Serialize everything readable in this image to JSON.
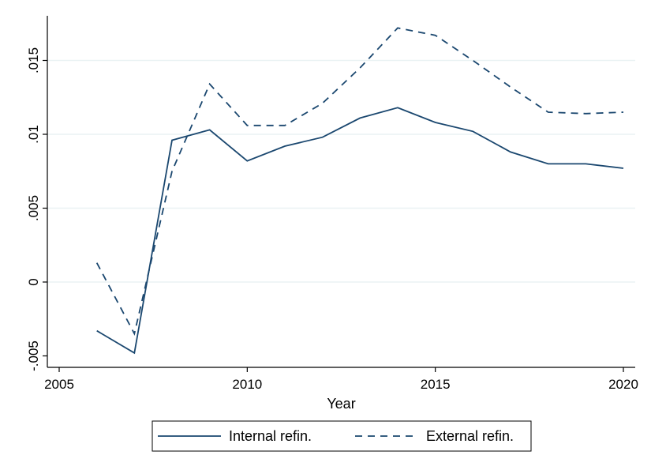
{
  "chart_data": {
    "type": "line",
    "title": "",
    "xlabel": "Year",
    "ylabel": "",
    "xlim": [
      2005,
      2020
    ],
    "ylim": [
      -0.005,
      0.0175
    ],
    "xticks": [
      2005,
      2010,
      2015,
      2020
    ],
    "xtick_labels": [
      "2005",
      "2010",
      "2015",
      "2020"
    ],
    "yticks": [
      -0.005,
      0,
      0.005,
      0.01,
      0.015
    ],
    "ytick_labels": [
      "-.005",
      "0",
      ".005",
      ".01",
      ".015"
    ],
    "grid": true,
    "legend_position": "bottom",
    "x": [
      2006,
      2007,
      2008,
      2009,
      2010,
      2011,
      2012,
      2013,
      2014,
      2015,
      2016,
      2017,
      2018,
      2019,
      2020
    ],
    "series": [
      {
        "name": "Internal refin.",
        "style": "solid",
        "color": "#1a476f",
        "values": [
          -0.0033,
          -0.0048,
          0.0096,
          0.0103,
          0.0082,
          0.0092,
          0.0098,
          0.0111,
          0.0118,
          0.0108,
          0.0102,
          0.0088,
          0.008,
          0.008,
          0.0077
        ]
      },
      {
        "name": "External refin.",
        "style": "dashed",
        "color": "#1a476f",
        "values": [
          0.0013,
          -0.0035,
          0.0075,
          0.0134,
          0.0106,
          0.0106,
          0.0121,
          0.0145,
          0.0172,
          0.0167,
          0.015,
          0.0132,
          0.0115,
          0.0114,
          0.0115
        ]
      }
    ]
  }
}
